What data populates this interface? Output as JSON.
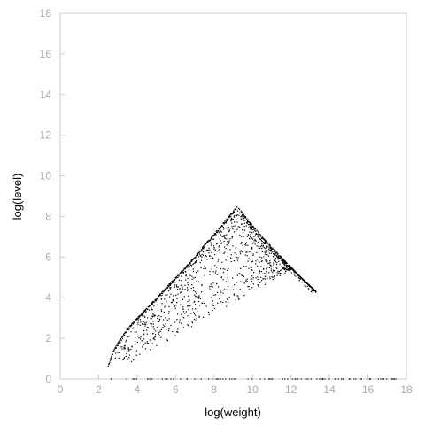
{
  "chart_data": {
    "type": "scatter",
    "title": "",
    "xlabel": "log(weight)",
    "ylabel": "log(level)",
    "xlim": [
      0,
      18
    ],
    "ylim": [
      0,
      18
    ],
    "xticks": [
      0,
      2,
      4,
      6,
      8,
      10,
      12,
      14,
      16,
      18
    ],
    "yticks": [
      0,
      2,
      4,
      6,
      8,
      10,
      12,
      14,
      16,
      18
    ],
    "grid": false,
    "point_color": "#000000",
    "envelope_upper_edge": [
      [
        2.5,
        0.7
      ],
      [
        2.8,
        1.5
      ],
      [
        3.5,
        2.5
      ],
      [
        4.5,
        3.5
      ],
      [
        5.5,
        4.5
      ],
      [
        6.5,
        5.5
      ],
      [
        7.5,
        6.6
      ],
      [
        8.5,
        7.7
      ],
      [
        9.2,
        8.5
      ]
    ],
    "envelope_right_edge": [
      [
        9.2,
        8.5
      ],
      [
        10.5,
        7.0
      ],
      [
        11.5,
        6.0
      ],
      [
        12.5,
        5.0
      ],
      [
        13.3,
        4.3
      ]
    ],
    "baseline_points_x_range": [
      2.5,
      17.8
    ],
    "approx_point_count": 1400
  }
}
